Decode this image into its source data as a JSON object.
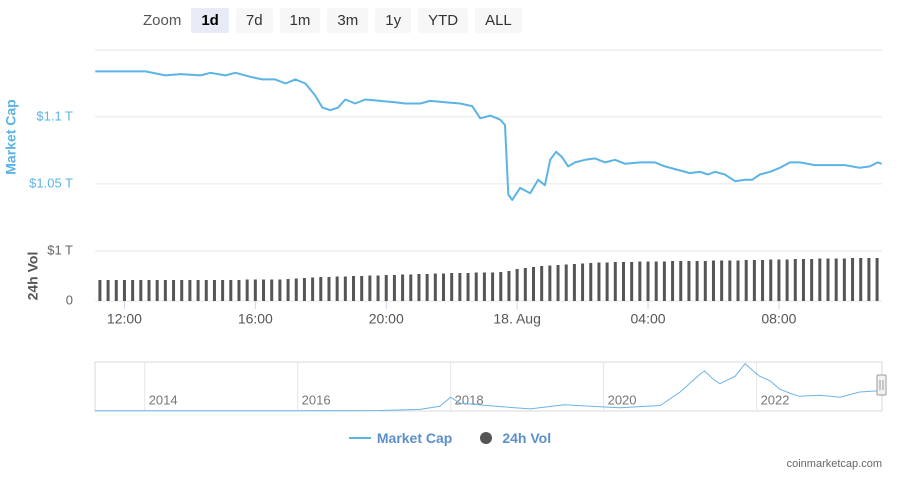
{
  "zoom": {
    "label": "Zoom",
    "buttons": [
      "1d",
      "7d",
      "1m",
      "3m",
      "1y",
      "YTD",
      "ALL"
    ],
    "selected": 0
  },
  "credit": "coinmarketcap.com",
  "chart_data": [
    {
      "type": "line",
      "y_label": "Market Cap",
      "xlim": [
        11.1,
        35.15
      ],
      "ylim": [
        1.02,
        1.15
      ],
      "yticks": [
        {
          "value": 1.05,
          "label": "$1.05 T"
        },
        {
          "value": 1.1,
          "label": "$1.1 T"
        }
      ],
      "grid": true,
      "x": [
        11.11,
        11.57,
        11.88,
        12.64,
        13.25,
        13.71,
        14.32,
        14.63,
        15.08,
        15.39,
        15.85,
        16.21,
        16.61,
        16.92,
        17.22,
        17.53,
        17.83,
        18.05,
        18.29,
        18.53,
        18.75,
        19.05,
        19.36,
        19.82,
        20.27,
        20.58,
        21.04,
        21.34,
        21.8,
        22.26,
        22.63,
        22.87,
        23.18,
        23.48,
        23.63,
        23.73,
        23.85,
        24.09,
        24.4,
        24.64,
        24.85,
        25.01,
        25.19,
        25.37,
        25.56,
        25.77,
        26.08,
        26.38,
        26.69,
        26.99,
        27.3,
        27.76,
        28.21,
        28.52,
        28.98,
        29.28,
        29.59,
        29.83,
        30.05,
        30.35,
        30.66,
        30.96,
        31.18,
        31.42,
        31.73,
        32.03,
        32.34,
        32.64,
        33.1,
        33.56,
        34.02,
        34.47,
        34.78,
        35.02,
        35.14
      ],
      "series": [
        {
          "name": "Market Cap",
          "color": "#5cb3e6",
          "values": [
            1.134,
            1.134,
            1.134,
            1.134,
            1.131,
            1.132,
            1.131,
            1.133,
            1.131,
            1.133,
            1.13,
            1.128,
            1.128,
            1.125,
            1.128,
            1.125,
            1.116,
            1.107,
            1.105,
            1.107,
            1.113,
            1.11,
            1.113,
            1.112,
            1.111,
            1.11,
            1.11,
            1.112,
            1.111,
            1.11,
            1.108,
            1.099,
            1.101,
            1.098,
            1.094,
            1.042,
            1.038,
            1.047,
            1.043,
            1.053,
            1.049,
            1.068,
            1.074,
            1.07,
            1.063,
            1.066,
            1.068,
            1.069,
            1.066,
            1.068,
            1.065,
            1.066,
            1.066,
            1.063,
            1.06,
            1.058,
            1.059,
            1.057,
            1.059,
            1.057,
            1.052,
            1.053,
            1.053,
            1.057,
            1.059,
            1.062,
            1.066,
            1.066,
            1.064,
            1.064,
            1.064,
            1.062,
            1.063,
            1.066,
            1.065
          ]
        }
      ]
    },
    {
      "type": "bar",
      "y_label": "24h Vol",
      "xlim": [
        11.1,
        35.15
      ],
      "ylim": [
        0,
        1
      ],
      "yticks": [
        0,
        {
          "value": 1,
          "label": "$1 T"
        }
      ],
      "grid": true,
      "xticks": [
        {
          "value": 12,
          "label": "12:00"
        },
        {
          "value": 16,
          "label": "16:00"
        },
        {
          "value": 20,
          "label": "20:00"
        },
        {
          "value": 24,
          "label": "18. Aug"
        },
        {
          "value": 28,
          "label": "04:00"
        },
        {
          "value": 32,
          "label": "08:00"
        }
      ],
      "x": [
        11.25,
        11.5,
        11.75,
        12,
        12.25,
        12.5,
        12.75,
        13,
        13.25,
        13.5,
        13.75,
        14,
        14.25,
        14.5,
        14.75,
        15,
        15.25,
        15.5,
        15.75,
        16,
        16.25,
        16.5,
        16.75,
        17,
        17.25,
        17.5,
        17.75,
        18,
        18.25,
        18.5,
        18.75,
        19,
        19.25,
        19.5,
        19.75,
        20,
        20.25,
        20.5,
        20.75,
        21,
        21.25,
        21.5,
        21.75,
        22,
        22.25,
        22.5,
        22.75,
        23,
        23.25,
        23.5,
        23.75,
        24,
        24.25,
        24.5,
        24.75,
        25,
        25.25,
        25.5,
        25.75,
        26,
        26.25,
        26.5,
        26.75,
        27,
        27.25,
        27.5,
        27.75,
        28,
        28.25,
        28.5,
        28.75,
        29,
        29.25,
        29.5,
        29.75,
        30,
        30.25,
        30.5,
        30.75,
        31,
        31.25,
        31.5,
        31.75,
        32,
        32.25,
        32.5,
        32.75,
        33,
        33.25,
        33.5,
        33.75,
        34,
        34.25,
        34.5,
        34.75,
        35
      ],
      "series": [
        {
          "name": "24h Vol",
          "color": "#555555",
          "values": [
            0.42,
            0.42,
            0.42,
            0.42,
            0.42,
            0.42,
            0.42,
            0.42,
            0.42,
            0.42,
            0.42,
            0.42,
            0.42,
            0.42,
            0.42,
            0.42,
            0.42,
            0.42,
            0.43,
            0.43,
            0.43,
            0.43,
            0.43,
            0.44,
            0.45,
            0.46,
            0.47,
            0.48,
            0.48,
            0.49,
            0.49,
            0.5,
            0.5,
            0.51,
            0.51,
            0.52,
            0.52,
            0.53,
            0.53,
            0.54,
            0.54,
            0.55,
            0.55,
            0.56,
            0.56,
            0.56,
            0.57,
            0.57,
            0.57,
            0.58,
            0.6,
            0.64,
            0.66,
            0.68,
            0.7,
            0.71,
            0.72,
            0.73,
            0.74,
            0.75,
            0.76,
            0.77,
            0.77,
            0.78,
            0.78,
            0.78,
            0.79,
            0.79,
            0.79,
            0.79,
            0.8,
            0.8,
            0.8,
            0.8,
            0.8,
            0.81,
            0.81,
            0.81,
            0.81,
            0.82,
            0.82,
            0.82,
            0.83,
            0.83,
            0.83,
            0.84,
            0.84,
            0.84,
            0.85,
            0.85,
            0.85,
            0.85,
            0.86,
            0.86,
            0.86,
            0.86
          ]
        }
      ]
    },
    {
      "type": "navigator",
      "color": "#6cb4e4",
      "xlim": [
        2013.35,
        2023.64
      ],
      "ylim": [
        0,
        3.1
      ],
      "xticks": [
        2014,
        2016,
        2018,
        2020,
        2022
      ],
      "x": [
        2013.35,
        2014.0,
        2014.98,
        2016.0,
        2017.08,
        2017.6,
        2017.86,
        2018.0,
        2018.12,
        2018.51,
        2019.04,
        2019.49,
        2019.95,
        2020.21,
        2020.74,
        2021.0,
        2021.26,
        2021.32,
        2021.42,
        2021.52,
        2021.72,
        2021.85,
        2021.94,
        2022.04,
        2022.17,
        2022.3,
        2022.43,
        2022.56,
        2022.83,
        2023.09,
        2023.35,
        2023.57
      ],
      "values": [
        0.01,
        0.01,
        0.01,
        0.02,
        0.03,
        0.1,
        0.3,
        0.87,
        0.5,
        0.33,
        0.13,
        0.4,
        0.27,
        0.2,
        0.35,
        1.2,
        2.33,
        2.53,
        2.07,
        1.73,
        2.2,
        3.0,
        2.6,
        2.2,
        1.93,
        1.4,
        1.13,
        0.93,
        1.0,
        0.87,
        1.2,
        1.27
      ]
    }
  ]
}
